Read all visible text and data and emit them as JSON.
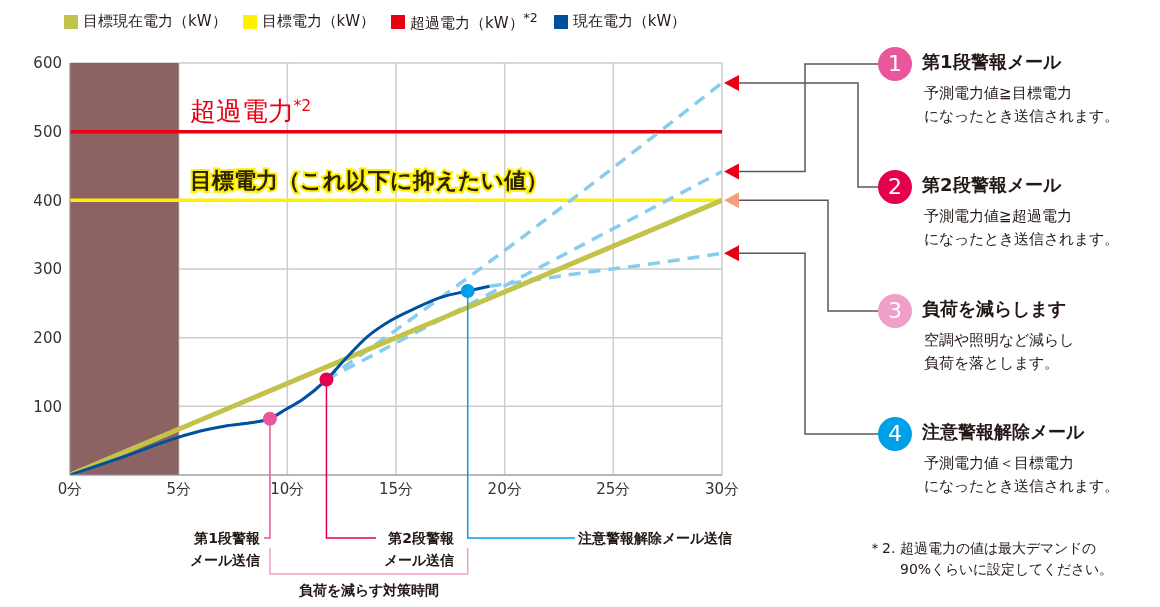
{
  "chart_data": {
    "type": "line",
    "xlim": [
      0,
      30
    ],
    "xticks": [
      {
        "value": 0,
        "label": "0分"
      },
      {
        "value": 5,
        "label": "5分"
      },
      {
        "value": 10,
        "label": "10分"
      },
      {
        "value": 15,
        "label": "15分"
      },
      {
        "value": 20,
        "label": "20分"
      },
      {
        "value": 25,
        "label": "25分"
      },
      {
        "value": 30,
        "label": "30分"
      }
    ],
    "ylim": [
      0,
      600
    ],
    "yticks": [
      {
        "value": 0,
        "label": null
      },
      100,
      200,
      300,
      400,
      500,
      600
    ],
    "grid": true,
    "legend": "top left",
    "marker": "none",
    "bands": [
      {
        "axis": "x",
        "from": 0,
        "to": 5,
        "color": "#8c6262"
      }
    ],
    "series": [
      {
        "name": "目標現在電力（kW）",
        "color": "#c3c24a",
        "x": [
          0,
          30
        ],
        "values": [
          0,
          400
        ]
      },
      {
        "name": "目標電力（kW）",
        "color": "#fff000",
        "x": [
          0,
          30
        ],
        "values": [
          400,
          400
        ]
      },
      {
        "name": "超過電力（kW）$^{*2}$",
        "color": "#e60012",
        "x": [
          0,
          30
        ],
        "values": [
          500,
          500
        ]
      },
      {
        "name": "現在電力（kW）",
        "color": "#0050a0",
        "x": [
          0,
          2.5,
          4.9,
          6,
          7.1,
          8.3,
          9.2,
          9.9,
          10.7,
          11.8,
          12.7,
          13.7,
          14.7,
          15.9,
          17.1,
          18.3,
          19.3
        ],
        "values": [
          0,
          27,
          54,
          64,
          71,
          76,
          82,
          95,
          110,
          139,
          170,
          202,
          224,
          243,
          259,
          268,
          275
        ]
      },
      {
        "color": "#88ccee",
        "line_style": "dashed",
        "x": [
          11.8,
          18.3,
          30
        ],
        "values": [
          139,
          287,
          571
        ]
      },
      {
        "color": "#88ccee",
        "line_style": "dashed",
        "x": [
          11.8,
          30
        ],
        "values": [
          139,
          442
        ]
      },
      {
        "color": "#88ccee",
        "line_style": "dashed",
        "x": [
          19.3,
          20.7,
          23.5,
          27.1,
          30
        ],
        "values": [
          275,
          281,
          294,
          309,
          323
        ]
      },
      {
        "type": "scatter",
        "marker": "circle",
        "x": [
          9.2,
          11.8,
          18.3
        ],
        "values": [
          82,
          139,
          268
        ],
        "colors": [
          "#e8579b",
          "#e4004f",
          "#00a0e9"
        ]
      }
    ],
    "annotations": [
      {
        "text": "超過電力$^{*2}$",
        "x": 5.5,
        "y": 500
      },
      {
        "text": "目標電力（これ以下に抑えたい値）",
        "x": 5.5,
        "y": 400
      },
      {
        "text": "第1段警報メール送信",
        "x": 9.2,
        "y": 82
      },
      {
        "text": "第2段警報メール送信",
        "x": 11.8,
        "y": 139
      },
      {
        "text": "注意警報解除メール送信",
        "x": 18.3,
        "y": 268
      },
      "負荷を減らす対策時間",
      "1",
      "第1段警報メール",
      "予測電力値≧目標電力",
      "になったとき送信されます。",
      "2",
      "第2段警報メール",
      "予測電力値≧超過電力",
      "になったとき送信されます。",
      "3",
      "負荷を減らします",
      "空調や照明など減らし",
      "負荷を落とします。",
      "4",
      "注意警報解除メール",
      "予測電力値＜目標電力",
      "になったとき送信されます。",
      "＊2. 超過電力の値は最大デマンドの",
      "90%くらいに設定してください。"
    ]
  }
}
